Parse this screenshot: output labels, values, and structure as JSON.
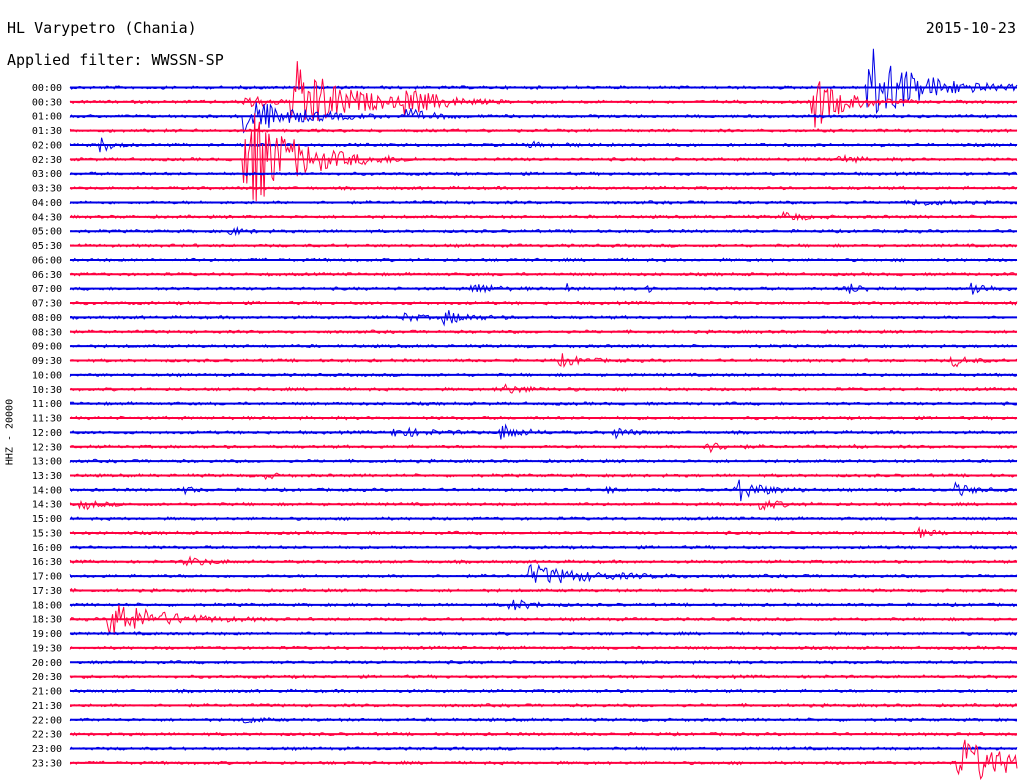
{
  "header": {
    "station": "HL Varypetro (Chania)",
    "date": "2015-10-23",
    "filter": "Applied filter: WWSSN-SP"
  },
  "chart_data": {
    "type": "line",
    "title": "HL Varypetro (Chania)",
    "subtitle": "Applied filter: WWSSN-SP",
    "ylabel": "HHZ - 20000",
    "xlabel": "",
    "grid": false,
    "legend": "none",
    "colors": {
      "even_rows": "#0000e6",
      "odd_rows": "#ff0040"
    },
    "row_labels": [
      "00:00",
      "00:30",
      "01:00",
      "01:30",
      "02:00",
      "02:30",
      "03:00",
      "03:30",
      "04:00",
      "04:30",
      "05:00",
      "05:30",
      "06:00",
      "06:30",
      "07:00",
      "07:30",
      "08:00",
      "08:30",
      "09:00",
      "09:30",
      "10:00",
      "10:30",
      "11:00",
      "11:30",
      "12:00",
      "12:30",
      "13:00",
      "13:30",
      "14:00",
      "14:30",
      "15:00",
      "15:30",
      "16:00",
      "16:30",
      "17:00",
      "17:30",
      "18:00",
      "18:30",
      "19:00",
      "19:30",
      "20:00",
      "20:30",
      "21:00",
      "21:30",
      "22:00",
      "22:30",
      "23:00",
      "23:30"
    ],
    "events": [
      {
        "row": 0,
        "minute": 25.2,
        "amplitude": 45,
        "duration": 2.5
      },
      {
        "row": 1,
        "minute": 5.5,
        "amplitude": 8,
        "duration": 1.2
      },
      {
        "row": 1,
        "minute": 7.0,
        "amplitude": 45,
        "duration": 2.5
      },
      {
        "row": 1,
        "minute": 10.5,
        "amplitude": 12,
        "duration": 2.0
      },
      {
        "row": 1,
        "minute": 23.5,
        "amplitude": 30,
        "duration": 1.5
      },
      {
        "row": 2,
        "minute": 5.4,
        "amplitude": 22,
        "duration": 2.5
      },
      {
        "row": 2,
        "minute": 10.6,
        "amplitude": 8,
        "duration": 1.2
      },
      {
        "row": 4,
        "minute": 0.9,
        "amplitude": 9,
        "duration": 0.6
      },
      {
        "row": 4,
        "minute": 14.5,
        "amplitude": 3,
        "duration": 1.3
      },
      {
        "row": 5,
        "minute": 5.5,
        "amplitude": 60,
        "duration": 2.5
      },
      {
        "row": 5,
        "minute": 24.2,
        "amplitude": 5,
        "duration": 1.0
      },
      {
        "row": 8,
        "minute": 26.7,
        "amplitude": 3,
        "duration": 1.5
      },
      {
        "row": 9,
        "minute": 22.5,
        "amplitude": 6,
        "duration": 1.0
      },
      {
        "row": 10,
        "minute": 5.0,
        "amplitude": 4,
        "duration": 0.8
      },
      {
        "row": 14,
        "minute": 12.7,
        "amplitude": 7,
        "duration": 1.0
      },
      {
        "row": 14,
        "minute": 15.7,
        "amplitude": 6,
        "duration": 0.2
      },
      {
        "row": 14,
        "minute": 18.3,
        "amplitude": 6,
        "duration": 0.2
      },
      {
        "row": 14,
        "minute": 24.5,
        "amplitude": 6,
        "duration": 1.0
      },
      {
        "row": 14,
        "minute": 28.5,
        "amplitude": 9,
        "duration": 0.8
      },
      {
        "row": 16,
        "minute": 10.5,
        "amplitude": 5,
        "duration": 0.8
      },
      {
        "row": 16,
        "minute": 11.8,
        "amplitude": 8,
        "duration": 1.2
      },
      {
        "row": 19,
        "minute": 15.5,
        "amplitude": 7,
        "duration": 1.0
      },
      {
        "row": 19,
        "minute": 27.9,
        "amplitude": 7,
        "duration": 0.8
      },
      {
        "row": 20,
        "minute": 27.7,
        "amplitude": 8,
        "duration": 0.1
      },
      {
        "row": 21,
        "minute": 13.5,
        "amplitude": 6,
        "duration": 1.3
      },
      {
        "row": 24,
        "minute": 10.2,
        "amplitude": 5,
        "duration": 1.8
      },
      {
        "row": 24,
        "minute": 13.6,
        "amplitude": 9,
        "duration": 1.0
      },
      {
        "row": 24,
        "minute": 17.2,
        "amplitude": 6,
        "duration": 0.8
      },
      {
        "row": 25,
        "minute": 20.1,
        "amplitude": 6,
        "duration": 1.0
      },
      {
        "row": 25,
        "minute": 24.8,
        "amplitude": 5,
        "duration": 0.1
      },
      {
        "row": 27,
        "minute": 6.0,
        "amplitude": 5,
        "duration": 0.6
      },
      {
        "row": 28,
        "minute": 3.6,
        "amplitude": 4,
        "duration": 0.5
      },
      {
        "row": 28,
        "minute": 17.0,
        "amplitude": 5,
        "duration": 0.3
      },
      {
        "row": 28,
        "minute": 21.0,
        "amplitude": 14,
        "duration": 1.3
      },
      {
        "row": 28,
        "minute": 28.0,
        "amplitude": 8,
        "duration": 0.8
      },
      {
        "row": 29,
        "minute": 0.3,
        "amplitude": 6,
        "duration": 0.8
      },
      {
        "row": 29,
        "minute": 21.8,
        "amplitude": 6,
        "duration": 1.0
      },
      {
        "row": 31,
        "minute": 26.8,
        "amplitude": 5,
        "duration": 0.8
      },
      {
        "row": 33,
        "minute": 3.6,
        "amplitude": 5,
        "duration": 1.2
      },
      {
        "row": 34,
        "minute": 14.5,
        "amplitude": 11,
        "duration": 3.0
      },
      {
        "row": 36,
        "minute": 13.9,
        "amplitude": 7,
        "duration": 1.0
      },
      {
        "row": 37,
        "minute": 1.2,
        "amplitude": 20,
        "duration": 2.5
      },
      {
        "row": 44,
        "minute": 5.5,
        "amplitude": 5,
        "duration": 0.6
      },
      {
        "row": 47,
        "minute": 28.1,
        "amplitude": 28,
        "duration": 2.5
      }
    ]
  }
}
